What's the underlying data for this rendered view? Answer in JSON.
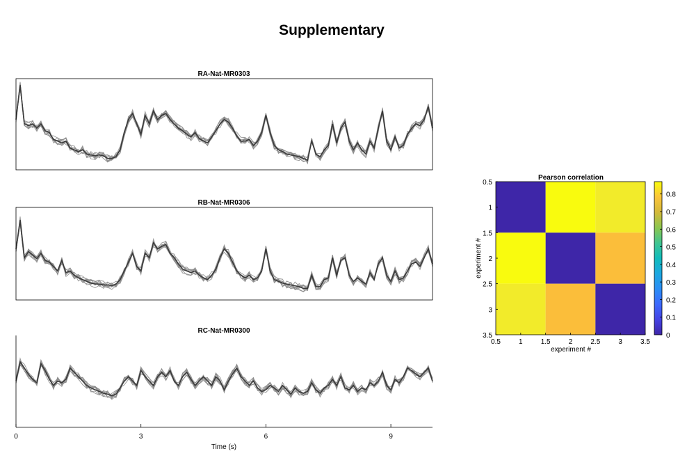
{
  "page": {
    "title": "Supplementary"
  },
  "chart_data": [
    {
      "type": "line",
      "title": "RA-Nat-MR0303",
      "xlabel": "",
      "ylabel": "",
      "xlim": [
        0,
        10
      ],
      "grid": false,
      "legend": "none",
      "colors": {
        "trials": "#8a8a8a",
        "mean": "#3a3a3a"
      },
      "trial_count": 8,
      "x": [
        0,
        0.1,
        0.2,
        0.3,
        0.4,
        0.5,
        0.6,
        0.7,
        0.8,
        0.9,
        1,
        1.1,
        1.2,
        1.3,
        1.4,
        1.5,
        1.6,
        1.7,
        1.8,
        1.9,
        2,
        2.1,
        2.2,
        2.3,
        2.4,
        2.5,
        2.6,
        2.7,
        2.8,
        2.9,
        3,
        3.1,
        3.2,
        3.3,
        3.4,
        3.5,
        3.6,
        3.7,
        3.8,
        3.9,
        4,
        4.1,
        4.2,
        4.3,
        4.4,
        4.5,
        4.6,
        4.7,
        4.8,
        4.9,
        5,
        5.1,
        5.2,
        5.3,
        5.4,
        5.5,
        5.6,
        5.7,
        5.8,
        5.9,
        6,
        6.1,
        6.2,
        6.3,
        6.4,
        6.5,
        6.6,
        6.7,
        6.8,
        6.9,
        7,
        7.1,
        7.2,
        7.3,
        7.4,
        7.5,
        7.6,
        7.7,
        7.8,
        7.9,
        8,
        8.1,
        8.2,
        8.3,
        8.4,
        8.5,
        8.6,
        8.7,
        8.8,
        8.9,
        9,
        9.1,
        9.2,
        9.3,
        9.4,
        9.5,
        9.6,
        9.7,
        9.8,
        9.9,
        10
      ],
      "y": [
        0.55,
        0.95,
        0.5,
        0.48,
        0.5,
        0.45,
        0.5,
        0.42,
        0.4,
        0.32,
        0.3,
        0.28,
        0.3,
        0.22,
        0.2,
        0.18,
        0.2,
        0.15,
        0.14,
        0.13,
        0.14,
        0.13,
        0.1,
        0.1,
        0.12,
        0.2,
        0.4,
        0.55,
        0.62,
        0.5,
        0.38,
        0.6,
        0.5,
        0.65,
        0.55,
        0.6,
        0.62,
        0.55,
        0.5,
        0.45,
        0.42,
        0.38,
        0.35,
        0.4,
        0.33,
        0.3,
        0.28,
        0.35,
        0.42,
        0.5,
        0.55,
        0.52,
        0.45,
        0.36,
        0.3,
        0.3,
        0.32,
        0.25,
        0.3,
        0.4,
        0.6,
        0.4,
        0.25,
        0.2,
        0.18,
        0.15,
        0.14,
        0.13,
        0.12,
        0.1,
        0.08,
        0.3,
        0.15,
        0.12,
        0.2,
        0.25,
        0.5,
        0.28,
        0.45,
        0.52,
        0.3,
        0.2,
        0.28,
        0.2,
        0.15,
        0.3,
        0.22,
        0.45,
        0.65,
        0.3,
        0.2,
        0.35,
        0.22,
        0.25,
        0.38,
        0.45,
        0.5,
        0.48,
        0.55,
        0.7,
        0.45
      ]
    },
    {
      "type": "line",
      "title": "RB-Nat-MR0306",
      "xlabel": "",
      "ylabel": "",
      "xlim": [
        0,
        10
      ],
      "grid": false,
      "legend": "none",
      "colors": {
        "trials": "#8a8a8a",
        "mean": "#3a3a3a"
      },
      "trial_count": 8,
      "x": [
        0,
        0.1,
        0.2,
        0.3,
        0.4,
        0.5,
        0.6,
        0.7,
        0.8,
        0.9,
        1,
        1.1,
        1.2,
        1.3,
        1.4,
        1.5,
        1.6,
        1.7,
        1.8,
        1.9,
        2,
        2.1,
        2.2,
        2.3,
        2.4,
        2.5,
        2.6,
        2.7,
        2.8,
        2.9,
        3,
        3.1,
        3.2,
        3.3,
        3.4,
        3.5,
        3.6,
        3.7,
        3.8,
        3.9,
        4,
        4.1,
        4.2,
        4.3,
        4.4,
        4.5,
        4.6,
        4.7,
        4.8,
        4.9,
        5,
        5.1,
        5.2,
        5.3,
        5.4,
        5.5,
        5.6,
        5.7,
        5.8,
        5.9,
        6,
        6.1,
        6.2,
        6.3,
        6.4,
        6.5,
        6.6,
        6.7,
        6.8,
        6.9,
        7,
        7.1,
        7.2,
        7.3,
        7.4,
        7.5,
        7.6,
        7.7,
        7.8,
        7.9,
        8,
        8.1,
        8.2,
        8.3,
        8.4,
        8.5,
        8.6,
        8.7,
        8.8,
        8.9,
        9,
        9.1,
        9.2,
        9.3,
        9.4,
        9.5,
        9.6,
        9.7,
        9.8,
        9.9,
        10
      ],
      "y": [
        0.55,
        0.88,
        0.45,
        0.52,
        0.48,
        0.44,
        0.5,
        0.42,
        0.4,
        0.35,
        0.3,
        0.42,
        0.28,
        0.3,
        0.25,
        0.22,
        0.2,
        0.18,
        0.16,
        0.15,
        0.15,
        0.14,
        0.14,
        0.13,
        0.15,
        0.2,
        0.3,
        0.4,
        0.5,
        0.35,
        0.3,
        0.5,
        0.45,
        0.62,
        0.55,
        0.58,
        0.6,
        0.5,
        0.45,
        0.38,
        0.32,
        0.3,
        0.28,
        0.3,
        0.25,
        0.22,
        0.2,
        0.25,
        0.32,
        0.45,
        0.55,
        0.5,
        0.4,
        0.3,
        0.25,
        0.22,
        0.25,
        0.2,
        0.22,
        0.3,
        0.55,
        0.3,
        0.2,
        0.18,
        0.16,
        0.15,
        0.14,
        0.13,
        0.12,
        0.1,
        0.1,
        0.25,
        0.12,
        0.12,
        0.2,
        0.22,
        0.45,
        0.25,
        0.42,
        0.45,
        0.25,
        0.18,
        0.22,
        0.18,
        0.15,
        0.28,
        0.2,
        0.38,
        0.45,
        0.25,
        0.18,
        0.3,
        0.2,
        0.22,
        0.3,
        0.38,
        0.4,
        0.35,
        0.45,
        0.55,
        0.38
      ]
    },
    {
      "type": "line",
      "title": "RC-Nat-MR0300",
      "xlabel": "Time (s)",
      "ylabel": "",
      "xlim": [
        0,
        10
      ],
      "xticks": [
        0,
        3,
        6,
        9
      ],
      "grid": false,
      "legend": "none",
      "colors": {
        "trials": "#8a8a8a",
        "mean": "#3a3a3a"
      },
      "trial_count": 8,
      "x": [
        0,
        0.1,
        0.2,
        0.3,
        0.4,
        0.5,
        0.6,
        0.7,
        0.8,
        0.9,
        1,
        1.1,
        1.2,
        1.3,
        1.4,
        1.5,
        1.6,
        1.7,
        1.8,
        1.9,
        2,
        2.1,
        2.2,
        2.3,
        2.4,
        2.5,
        2.6,
        2.7,
        2.8,
        2.9,
        3,
        3.1,
        3.2,
        3.3,
        3.4,
        3.5,
        3.6,
        3.7,
        3.8,
        3.9,
        4,
        4.1,
        4.2,
        4.3,
        4.4,
        4.5,
        4.6,
        4.7,
        4.8,
        4.9,
        5,
        5.1,
        5.2,
        5.3,
        5.4,
        5.5,
        5.6,
        5.7,
        5.8,
        5.9,
        6,
        6.1,
        6.2,
        6.3,
        6.4,
        6.5,
        6.6,
        6.7,
        6.8,
        6.9,
        7,
        7.1,
        7.2,
        7.3,
        7.4,
        7.5,
        7.6,
        7.7,
        7.8,
        7.9,
        8,
        8.1,
        8.2,
        8.3,
        8.4,
        8.5,
        8.6,
        8.7,
        8.8,
        8.9,
        9,
        9.1,
        9.2,
        9.3,
        9.4,
        9.5,
        9.6,
        9.7,
        9.8,
        9.9,
        10
      ],
      "y": [
        0.5,
        0.72,
        0.65,
        0.58,
        0.52,
        0.48,
        0.7,
        0.62,
        0.52,
        0.45,
        0.5,
        0.48,
        0.52,
        0.65,
        0.6,
        0.55,
        0.5,
        0.45,
        0.42,
        0.4,
        0.38,
        0.36,
        0.35,
        0.33,
        0.35,
        0.42,
        0.5,
        0.55,
        0.5,
        0.45,
        0.62,
        0.55,
        0.5,
        0.45,
        0.55,
        0.6,
        0.55,
        0.62,
        0.5,
        0.45,
        0.55,
        0.6,
        0.52,
        0.45,
        0.5,
        0.55,
        0.5,
        0.45,
        0.55,
        0.5,
        0.4,
        0.5,
        0.58,
        0.65,
        0.55,
        0.5,
        0.45,
        0.5,
        0.42,
        0.38,
        0.4,
        0.45,
        0.42,
        0.38,
        0.45,
        0.4,
        0.35,
        0.42,
        0.38,
        0.36,
        0.38,
        0.48,
        0.4,
        0.36,
        0.42,
        0.45,
        0.52,
        0.45,
        0.55,
        0.42,
        0.4,
        0.45,
        0.38,
        0.42,
        0.4,
        0.48,
        0.45,
        0.5,
        0.6,
        0.45,
        0.4,
        0.52,
        0.48,
        0.55,
        0.65,
        0.62,
        0.58,
        0.55,
        0.6,
        0.65,
        0.5
      ]
    },
    {
      "type": "heatmap",
      "title": "Pearson correlation",
      "xlabel": "experiment #",
      "ylabel": "experiment #",
      "xlim": [
        0.5,
        3.5
      ],
      "ylim": [
        0.5,
        3.5
      ],
      "xticks": [
        "0.5",
        "1",
        "1.5",
        "2",
        "2.5",
        "3",
        "3.5"
      ],
      "yticks": [
        "0.5",
        "1",
        "1.5",
        "2",
        "2.5",
        "3",
        "3.5"
      ],
      "matrix": [
        [
          0,
          0.87,
          0.85
        ],
        [
          0.87,
          0,
          0.79
        ],
        [
          0.85,
          0.79,
          0
        ]
      ],
      "colormap": "parula",
      "colorbar": {
        "range": [
          0,
          0.87
        ],
        "ticks": [
          "0",
          "0.1",
          "0.2",
          "0.3",
          "0.4",
          "0.5",
          "0.6",
          "0.7",
          "0.8"
        ],
        "position": "right"
      },
      "colors": {
        "low": "#3e26a8",
        "high": "#f9fb0e",
        "matrix_cells": [
          [
            "#3e26a8",
            "#f9fb0e",
            "#f2eb2a"
          ],
          [
            "#f9fb0e",
            "#3e26a8",
            "#fbbe3a"
          ],
          [
            "#f2eb2a",
            "#fbbe3a",
            "#3e26a8"
          ]
        ]
      }
    }
  ]
}
